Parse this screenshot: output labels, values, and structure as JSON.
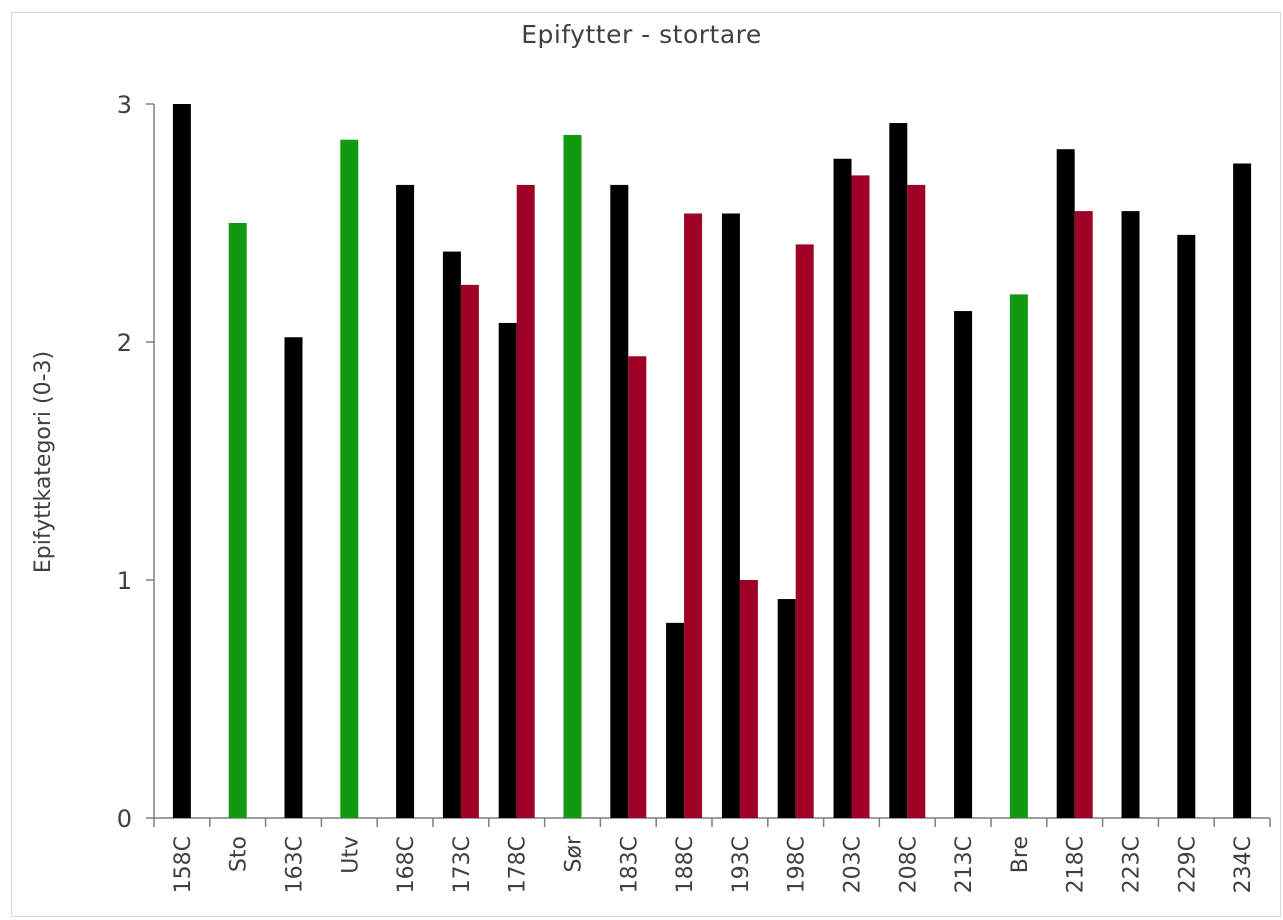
{
  "chart_data": {
    "type": "bar",
    "title": "Epifytter - stortare",
    "xlabel": "",
    "ylabel": "Epifyttkategori  (0-3)",
    "ylim": [
      0,
      3
    ],
    "yticks": [
      0,
      1,
      2,
      3
    ],
    "grid": false,
    "legend": "none",
    "categories": [
      "158C",
      "Sto",
      "163C",
      "Utv",
      "168C",
      "173C",
      "178C",
      "Sør",
      "183C",
      "188C",
      "193C",
      "198C",
      "203C",
      "208C",
      "213C",
      "Bre",
      "218C",
      "223C",
      "229C",
      "234C"
    ],
    "series": [
      {
        "color": "#000000",
        "values": [
          3.0,
          null,
          2.02,
          null,
          2.66,
          2.38,
          2.08,
          null,
          2.66,
          0.82,
          2.54,
          0.92,
          2.77,
          2.92,
          2.13,
          null,
          2.81,
          2.55,
          2.45,
          2.75
        ]
      },
      {
        "color": "#9e0026",
        "values": [
          null,
          null,
          null,
          null,
          null,
          2.24,
          2.66,
          null,
          1.94,
          2.54,
          1.0,
          2.41,
          2.7,
          2.66,
          null,
          null,
          2.55,
          null,
          null,
          null
        ]
      },
      {
        "color": "#119a11",
        "values": [
          null,
          2.5,
          null,
          2.85,
          null,
          null,
          null,
          2.87,
          null,
          null,
          null,
          null,
          null,
          null,
          null,
          2.2,
          null,
          null,
          null,
          null
        ]
      }
    ]
  }
}
